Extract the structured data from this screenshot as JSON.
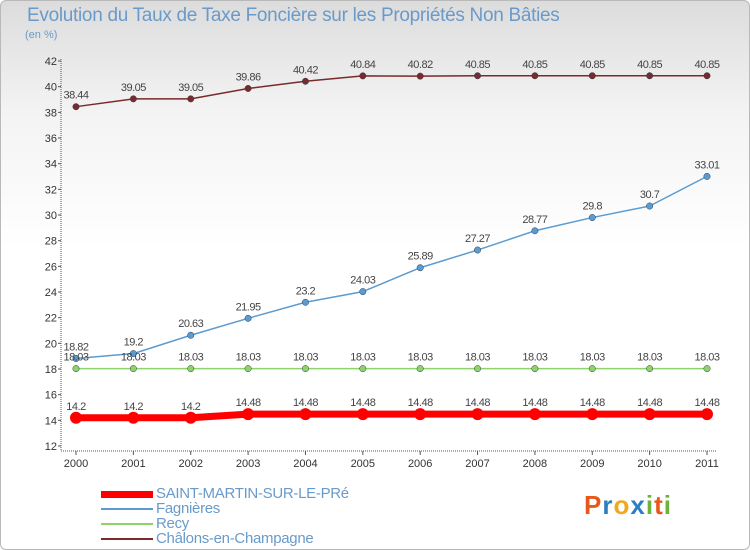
{
  "title": "Evolution du Taux de Taxe Foncière sur les Propriétés Non Bâties",
  "subtitle": "(en %)",
  "logo": {
    "text": "Proxiti",
    "letters": [
      {
        "char": "P",
        "color": "#e8581c"
      },
      {
        "char": "r",
        "color": "#2a7fc1"
      },
      {
        "char": "o",
        "color": "#f2a81d"
      },
      {
        "char": "x",
        "color": "#2a7fc1"
      },
      {
        "char": "i",
        "color": "#6bb33a"
      },
      {
        "char": "t",
        "color": "#e8581c"
      },
      {
        "char": "i",
        "color": "#6bb33a"
      }
    ]
  },
  "chart_data": {
    "type": "line",
    "x": [
      "2000",
      "2001",
      "2002",
      "2003",
      "2004",
      "2005",
      "2006",
      "2007",
      "2008",
      "2009",
      "2010",
      "2011"
    ],
    "ylim": [
      12,
      42
    ],
    "yticks": [
      12,
      14,
      16,
      18,
      20,
      22,
      24,
      26,
      28,
      30,
      32,
      34,
      36,
      38,
      40,
      42
    ],
    "grid": false,
    "legend_position": "bottom",
    "series": [
      {
        "name": "SAINT-MARTIN-SUR-LE-PRé",
        "color": "#ff0000",
        "values": [
          14.2,
          14.2,
          14.2,
          14.48,
          14.48,
          14.48,
          14.48,
          14.48,
          14.48,
          14.48,
          14.48,
          14.48
        ],
        "labels": [
          "14.2",
          "14.2",
          "14.2",
          "14.48",
          "14.48",
          "14.48",
          "14.48",
          "14.48",
          "14.48",
          "14.48",
          "14.48",
          "14.48"
        ]
      },
      {
        "name": "Fagnières",
        "color": "#5b9bd0",
        "values": [
          18.82,
          19.2,
          20.63,
          21.95,
          23.2,
          24.03,
          25.89,
          27.27,
          28.77,
          29.8,
          30.7,
          33.01
        ],
        "labels": [
          "18.82",
          "19.2",
          "20.63",
          "21.95",
          "23.2",
          "24.03",
          "25.89",
          "27.27",
          "28.77",
          "29.8",
          "30.7",
          "33.01"
        ]
      },
      {
        "name": "Recy",
        "color": "#8ed36a",
        "values": [
          18.03,
          18.03,
          18.03,
          18.03,
          18.03,
          18.03,
          18.03,
          18.03,
          18.03,
          18.03,
          18.03,
          18.03
        ],
        "labels": [
          "18.03",
          "18.03",
          "18.03",
          "18.03",
          "18.03",
          "18.03",
          "18.03",
          "18.03",
          "18.03",
          "18.03",
          "18.03",
          "18.03"
        ]
      },
      {
        "name": "Châlons-en-Champagne",
        "color": "#7a2a2a",
        "values": [
          38.44,
          39.05,
          39.05,
          39.86,
          40.42,
          40.84,
          40.82,
          40.85,
          40.85,
          40.85,
          40.85,
          40.85
        ],
        "labels": [
          "38.44",
          "39.05",
          "39.05",
          "39.86",
          "40.42",
          "40.84",
          "40.82",
          "40.85",
          "40.85",
          "40.85",
          "40.85",
          "40.85"
        ]
      }
    ]
  }
}
